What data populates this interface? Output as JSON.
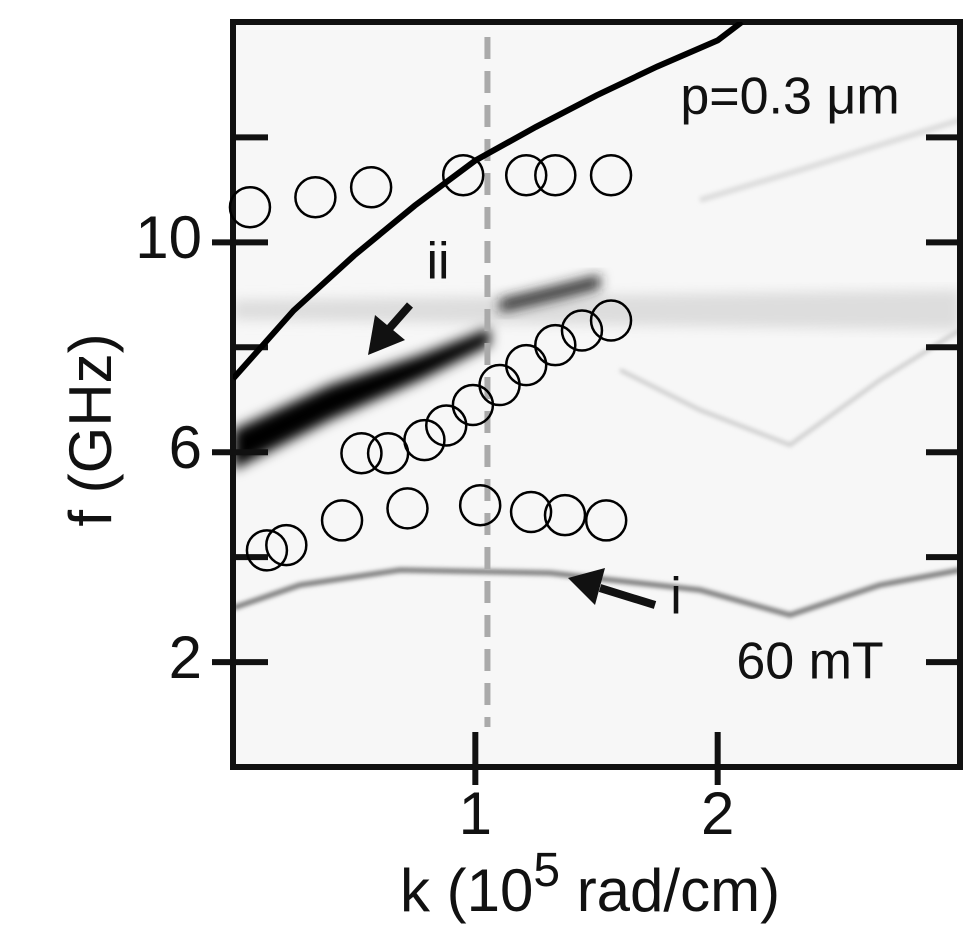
{
  "chart_data": {
    "type": "scatter",
    "xlabel_parts": [
      "k (10",
      "5",
      " rad/cm)"
    ],
    "ylabel": "f (GHz)",
    "xlim": [
      0,
      3.0
    ],
    "ylim": [
      0,
      14.2
    ],
    "xticks": [
      1,
      2
    ],
    "yticks": [
      2,
      6,
      10
    ],
    "yminorticks": [
      4,
      8,
      12
    ],
    "series": [
      {
        "marker": "circle",
        "color": "#000000",
        "x": [
          0.07,
          0.34,
          0.57,
          0.95,
          1.21,
          1.33,
          1.56
        ],
        "values": [
          10.67,
          10.86,
          11.05,
          11.28,
          11.28,
          11.28,
          11.28
        ]
      },
      {
        "marker": "circle",
        "color": "#000000",
        "x": [
          0.14,
          0.22,
          0.45,
          0.53,
          0.64,
          0.79,
          0.88,
          0.99,
          1.1,
          1.21,
          1.33,
          1.44,
          1.56
        ],
        "values": [
          4.13,
          4.23,
          4.7,
          5.98,
          5.98,
          6.23,
          6.51,
          6.9,
          7.28,
          7.66,
          8.04,
          8.32,
          8.51
        ]
      },
      {
        "marker": "circle",
        "color": "#000000",
        "x": [
          0.72,
          1.02,
          1.23,
          1.37,
          1.54
        ],
        "values": [
          4.93,
          4.99,
          4.86,
          4.8,
          4.7
        ]
      }
    ],
    "curve": {
      "color": "#000000",
      "x": [
        0,
        0.25,
        0.5,
        0.75,
        1.0,
        1.25,
        1.5,
        1.75,
        2.0,
        2.1
      ],
      "values": [
        7.4,
        8.7,
        9.75,
        10.7,
        11.56,
        12.2,
        12.8,
        13.35,
        13.85,
        14.2
      ]
    },
    "vline": {
      "x": 1.05,
      "color": "#aaaaaa"
    },
    "annotations": {
      "p": "p=0.3 μm",
      "ii": "ii",
      "i": "i",
      "field": "60 mT"
    }
  }
}
